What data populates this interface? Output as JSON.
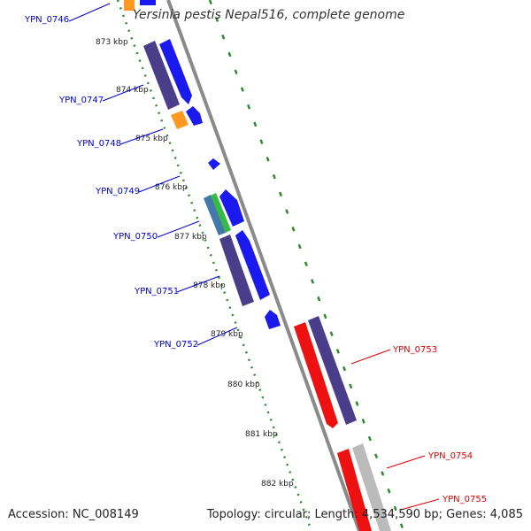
{
  "title": "Yersinia pestis Nepal516, complete genome",
  "accession_text": "Accession: NC_008149",
  "summary_text": "Topology: circular; Length: 4,534,590 bp; Genes: 4,085",
  "colors": {
    "backbone": "#888888",
    "ticks": "#2e8b2e",
    "forward_cds": "#1a1aee",
    "forward_gene": "#4a3e8a",
    "reverse_cds": "#ee1111",
    "reverse_gene": "#4a3e8a",
    "orange": "#ff9922",
    "pseudo": "#bbbbbb",
    "label_blue": "#0000cc",
    "label_red": "#dd0000"
  },
  "ruler": [
    {
      "label": "873 kbp"
    },
    {
      "label": "874 kbp"
    },
    {
      "label": "875 kbp"
    },
    {
      "label": "876 kbp"
    },
    {
      "label": "877 kbp"
    },
    {
      "label": "878 kbp"
    },
    {
      "label": "879 kbp"
    },
    {
      "label": "880 kbp"
    },
    {
      "label": "881 kbp"
    },
    {
      "label": "882 kbp"
    }
  ],
  "gene_labels": [
    {
      "id": "YPN_0746",
      "strand": "forward"
    },
    {
      "id": "YPN_0747",
      "strand": "forward"
    },
    {
      "id": "YPN_0748",
      "strand": "forward"
    },
    {
      "id": "YPN_0749",
      "strand": "forward"
    },
    {
      "id": "YPN_0750",
      "strand": "forward"
    },
    {
      "id": "YPN_0751",
      "strand": "forward"
    },
    {
      "id": "YPN_0752",
      "strand": "forward"
    },
    {
      "id": "YPN_0753",
      "strand": "reverse"
    },
    {
      "id": "YPN_0754",
      "strand": "reverse"
    },
    {
      "id": "YPN_0755",
      "strand": "reverse"
    }
  ]
}
